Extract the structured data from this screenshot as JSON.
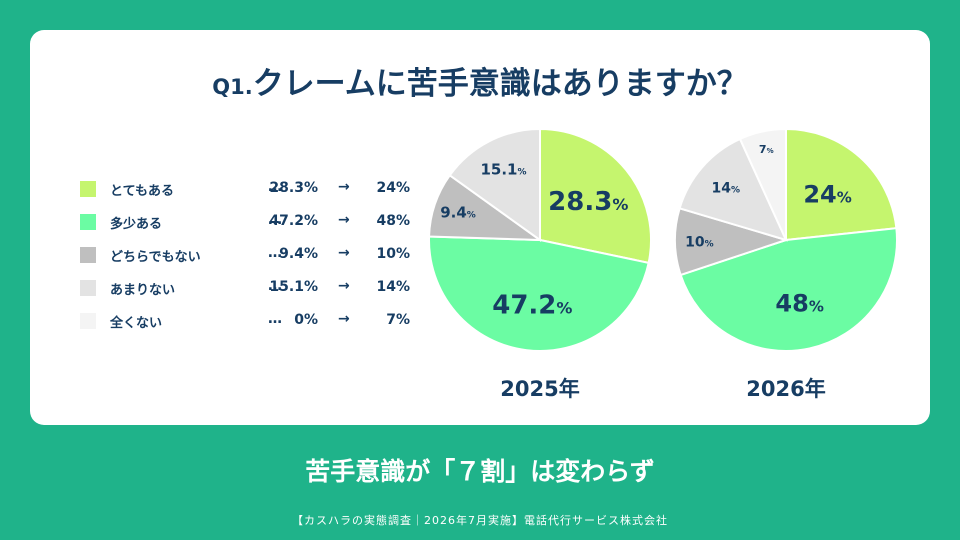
{
  "title": {
    "number": "Q1.",
    "text": "クレームに苦手意識はありますか？"
  },
  "legend": [
    {
      "label": "とてもある",
      "dots": "…",
      "v1": "28.3%",
      "arrow": "→",
      "v2": "24%",
      "color": "#c5f56e"
    },
    {
      "label": "多少ある",
      "dots": "…",
      "v1": "47.2%",
      "arrow": "→",
      "v2": "48%",
      "color": "#6bfca3"
    },
    {
      "label": "どちらでもない",
      "dots": "…",
      "v1": "9.4%",
      "arrow": "→",
      "v2": "10%",
      "color": "#bfbfbf"
    },
    {
      "label": "あまりない",
      "dots": "…",
      "v1": "15.1%",
      "arrow": "→",
      "v2": "14%",
      "color": "#e3e3e3"
    },
    {
      "label": "全くない",
      "dots": "…",
      "v1": "0%",
      "arrow": "→",
      "v2": "7%",
      "color": "#f4f4f4"
    }
  ],
  "chart_data": [
    {
      "type": "pie",
      "title": "2025年",
      "slices": [
        {
          "category": "とてもある",
          "value": 28.3,
          "label_num": "28.3",
          "label_unit": "%",
          "color": "#c5f56e"
        },
        {
          "category": "多少ある",
          "value": 47.2,
          "label_num": "47.2",
          "label_unit": "%",
          "color": "#6bfca3"
        },
        {
          "category": "どちらでもない",
          "value": 9.4,
          "label_num": "9.4",
          "label_unit": "%",
          "color": "#bfbfbf"
        },
        {
          "category": "あまりない",
          "value": 15.1,
          "label_num": "15.1",
          "label_unit": "%",
          "color": "#e3e3e3"
        },
        {
          "category": "全くない",
          "value": 0,
          "label_num": "",
          "label_unit": "",
          "color": "#f4f4f4"
        }
      ]
    },
    {
      "type": "pie",
      "title": "2026年",
      "slices": [
        {
          "category": "とてもある",
          "value": 24,
          "label_num": "24",
          "label_unit": "%",
          "color": "#c5f56e"
        },
        {
          "category": "多少ある",
          "value": 48,
          "label_num": "48",
          "label_unit": "%",
          "color": "#6bfca3"
        },
        {
          "category": "どちらでもない",
          "value": 10,
          "label_num": "10",
          "label_unit": "%",
          "color": "#bfbfbf"
        },
        {
          "category": "あまりない",
          "value": 14,
          "label_num": "14",
          "label_unit": "%",
          "color": "#e3e3e3"
        },
        {
          "category": "全くない",
          "value": 7,
          "label_num": "7",
          "label_unit": "%",
          "color": "#f4f4f4"
        }
      ]
    }
  ],
  "subtitle": "苦手意識が「７割」は変わらず",
  "footer": "【カスハラの実態調査｜2026年7月実施】電話代行サービス株式会社"
}
